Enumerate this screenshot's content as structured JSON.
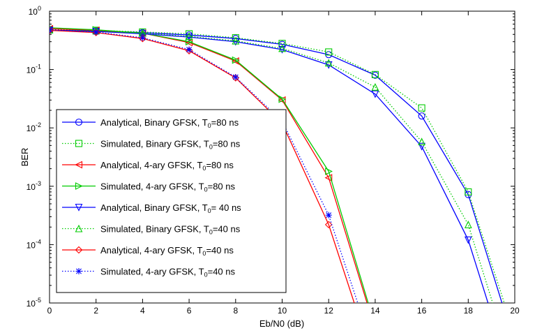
{
  "chart_data": {
    "type": "line",
    "xlabel": "Eb/N0 (dB)",
    "ylabel": "BER",
    "xlim": [
      0,
      20
    ],
    "ylim": [
      1e-05,
      1
    ],
    "yscale": "log",
    "grid": false,
    "legend_position": "bottom-left",
    "x_ticks": [
      "0",
      "2",
      "4",
      "6",
      "8",
      "10",
      "12",
      "14",
      "16",
      "18",
      "20"
    ],
    "y_ticks": [
      {
        "value": 1,
        "base": "10",
        "exp": "0"
      },
      {
        "value": 0.1,
        "base": "10",
        "exp": "-1"
      },
      {
        "value": 0.01,
        "base": "10",
        "exp": "-2"
      },
      {
        "value": 0.001,
        "base": "10",
        "exp": "-3"
      },
      {
        "value": 0.0001,
        "base": "10",
        "exp": "-4"
      },
      {
        "value": 1e-05,
        "base": "10",
        "exp": "-5"
      }
    ],
    "series": [
      {
        "name": "Analytical, Binary GFSK, T0=80 ns",
        "legend": [
          "Analytical, Binary GFSK, T",
          "0",
          "=80 ns"
        ],
        "color": "#0000ff",
        "style": "solid",
        "marker": "circle",
        "x": [
          0,
          2,
          4,
          6,
          8,
          10,
          12,
          14,
          16,
          18,
          19.45
        ],
        "y": [
          0.47,
          0.46,
          0.43,
          0.39,
          0.34,
          0.27,
          0.18,
          0.08,
          0.016,
          0.00072,
          1e-05
        ],
        "markers_at": [
          0,
          2,
          4,
          6,
          8,
          10,
          12,
          14,
          16,
          18
        ]
      },
      {
        "name": "Simulated, Binary GFSK, T0=80 ns",
        "legend": [
          "Simulated, Binary GFSK, T",
          "0",
          "=80 ns"
        ],
        "color": "#00cc00",
        "style": "dotted",
        "marker": "square",
        "x": [
          0,
          2,
          4,
          6,
          8,
          10,
          12,
          14,
          16,
          18,
          19.55
        ],
        "y": [
          0.48,
          0.47,
          0.44,
          0.41,
          0.35,
          0.28,
          0.2,
          0.082,
          0.022,
          0.0008,
          1e-05
        ],
        "markers_at": [
          0,
          2,
          4,
          6,
          8,
          10,
          12,
          14,
          16,
          18
        ]
      },
      {
        "name": "Analytical, 4-ary GFSK, T0=80 ns",
        "legend": [
          "Analytical, 4-ary GFSK, T",
          "0",
          "=80 ns"
        ],
        "color": "#ff0000",
        "style": "solid",
        "marker": "triangle-left",
        "x": [
          0,
          2,
          4,
          6,
          8,
          10,
          12,
          13.65
        ],
        "y": [
          0.5,
          0.47,
          0.42,
          0.29,
          0.14,
          0.03,
          0.0014,
          1e-05
        ],
        "markers_at": [
          0,
          2,
          4,
          6,
          8,
          10,
          12
        ]
      },
      {
        "name": "Simulated, 4-ary GFSK, T0=80 ns",
        "legend": [
          "Simulated, 4-ary GFSK, T",
          "0",
          "=80 ns"
        ],
        "color": "#00cc00",
        "style": "solid",
        "marker": "triangle-right",
        "x": [
          0,
          2,
          4,
          6,
          8,
          10,
          12,
          13.7
        ],
        "y": [
          0.52,
          0.48,
          0.42,
          0.3,
          0.145,
          0.031,
          0.0018,
          1e-05
        ],
        "markers_at": [
          0,
          2,
          4,
          6,
          8,
          10,
          12
        ]
      },
      {
        "name": "Analytical, Binary GFSK, T0= 40 ns",
        "legend": [
          "Analytical, Binary GFSK, T",
          "0",
          "= 40 ns"
        ],
        "color": "#0000ff",
        "style": "solid",
        "marker": "triangle-down",
        "x": [
          0,
          2,
          4,
          6,
          8,
          10,
          12,
          14,
          16,
          18,
          18.85
        ],
        "y": [
          0.47,
          0.45,
          0.41,
          0.36,
          0.3,
          0.22,
          0.12,
          0.038,
          0.0048,
          0.00012,
          1e-05
        ],
        "markers_at": [
          0,
          2,
          4,
          6,
          8,
          10,
          12,
          14,
          16,
          18
        ]
      },
      {
        "name": "Simulated, Binary GFSK, T0=40 ns",
        "legend": [
          "Simulated, Binary GFSK, T",
          "0",
          "=40 ns"
        ],
        "color": "#00cc00",
        "style": "dotted",
        "marker": "triangle-up",
        "x": [
          0,
          2,
          4,
          6,
          8,
          10,
          12,
          14,
          16,
          18,
          19.05
        ],
        "y": [
          0.48,
          0.46,
          0.42,
          0.37,
          0.31,
          0.23,
          0.13,
          0.05,
          0.0058,
          0.00022,
          1e-05
        ],
        "markers_at": [
          0,
          2,
          4,
          6,
          8,
          10,
          12,
          14,
          16,
          18
        ]
      },
      {
        "name": "Analytical, 4-ary GFSK, T0=40 ns",
        "legend": [
          "Analytical, 4-ary GFSK, T",
          "0",
          "=40 ns"
        ],
        "color": "#ff0000",
        "style": "solid",
        "marker": "diamond",
        "x": [
          0,
          2,
          4,
          6,
          8,
          10,
          12,
          13.1
        ],
        "y": [
          0.47,
          0.43,
          0.34,
          0.21,
          0.072,
          0.012,
          0.00022,
          1e-05
        ],
        "markers_at": [
          0,
          2,
          4,
          6,
          8,
          10,
          12
        ]
      },
      {
        "name": "Simulated, 4-ary GFSK, T0=40 ns",
        "legend": [
          "Simulated, 4-ary GFSK, T",
          "0",
          "=40 ns"
        ],
        "color": "#0000ff",
        "style": "dotted",
        "marker": "asterisk",
        "x": [
          0,
          2,
          4,
          6,
          8,
          10,
          12,
          13.25
        ],
        "y": [
          0.48,
          0.44,
          0.35,
          0.22,
          0.074,
          0.013,
          0.00032,
          1e-05
        ],
        "markers_at": [
          0,
          2,
          4,
          6,
          8,
          10,
          12
        ]
      }
    ]
  }
}
